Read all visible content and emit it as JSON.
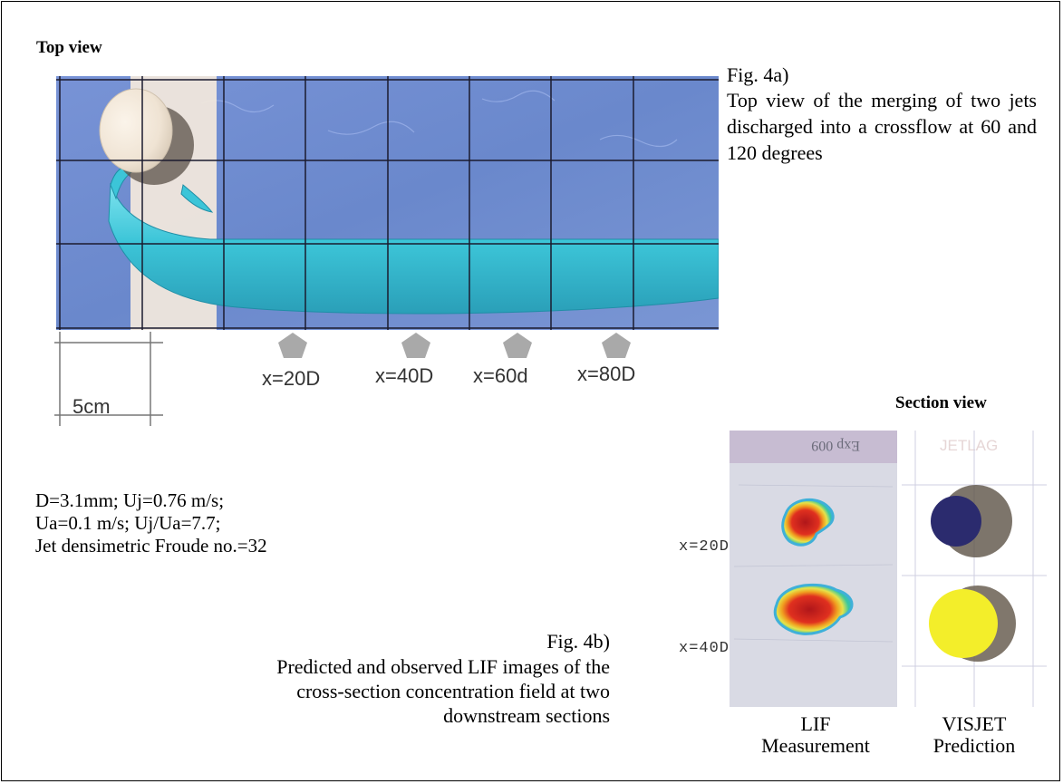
{
  "figure_a": {
    "section_title": "Top view",
    "fig_label": "Fig. 4a)",
    "caption": "Top view of the merging of two jets discharged into a crossflow at 60 and 120 degrees",
    "section_markers": [
      "x=20D",
      "x=40D",
      "x=60d",
      "x=80D"
    ],
    "scale_label": "5cm"
  },
  "parameters": {
    "line1": "D=3.1mm; Uj=0.76 m/s;",
    "line2": "Ua=0.1 m/s; Uj/Ua=7.7;",
    "line3": "Jet densimetric Froude no.=32"
  },
  "figure_b": {
    "fig_label": "Fig. 4b)",
    "caption_line1": "Predicted and observed LIF images of the",
    "caption_line2": "cross-section concentration field at two",
    "caption_line3": "downstream sections",
    "section_title": "Section view",
    "row_labels": [
      "x=20D",
      "x=40D"
    ],
    "col_lif_line1": "LIF",
    "col_lif_line2": "Measurement",
    "col_visjet_line1": "VISJET",
    "col_visjet_line2": "Prediction",
    "lif_header_text": "Exp 009",
    "visjet_header_text": "JETLAG"
  },
  "colors": {
    "water": "#6f8ccf",
    "jet": "#3fc6d8",
    "pier": "#f1e8dc",
    "lif_hot": "#d8201a",
    "visjet_dark": "#2b2b6e",
    "visjet_yellow": "#f3ee2a"
  }
}
